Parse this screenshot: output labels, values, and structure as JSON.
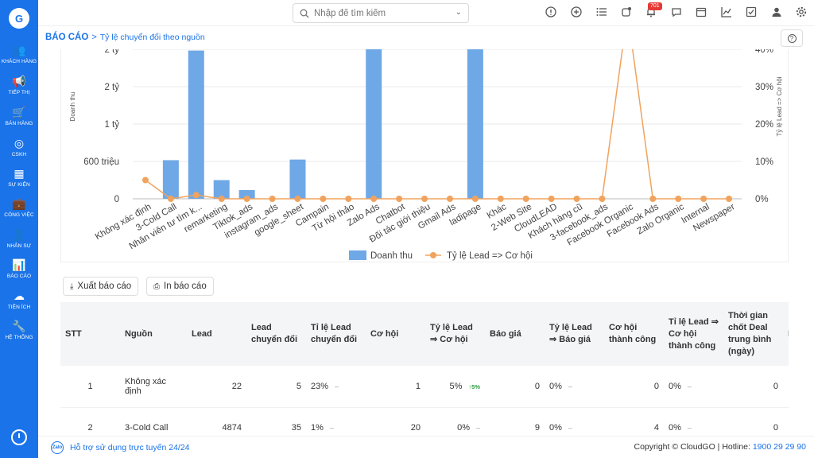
{
  "sidebar": {
    "logo": "G",
    "items": [
      {
        "label": "KHÁCH HÀNG",
        "icon": "users-icon",
        "glyph": "👥"
      },
      {
        "label": "TIẾP THỊ",
        "icon": "megaphone-icon",
        "glyph": "📢"
      },
      {
        "label": "BÁN HÀNG",
        "icon": "cart-icon",
        "glyph": "🛒"
      },
      {
        "label": "CSKH",
        "icon": "lifebuoy-icon",
        "glyph": "◎"
      },
      {
        "label": "SỰ KIỆN",
        "icon": "calendar-icon",
        "glyph": "▦"
      },
      {
        "label": "CÔNG VIỆC",
        "icon": "briefcase-icon",
        "glyph": "💼"
      },
      {
        "label": "NHÂN SỰ",
        "icon": "person-icon",
        "glyph": "👤"
      },
      {
        "label": "BÁO CÁO",
        "icon": "report-icon",
        "glyph": "📊"
      },
      {
        "label": "TIỆN ÍCH",
        "icon": "utilities-icon",
        "glyph": "☁"
      },
      {
        "label": "HỆ THỐNG",
        "icon": "wrench-icon",
        "glyph": "🔧"
      }
    ]
  },
  "topbar": {
    "search_placeholder": "Nhập để tìm kiếm",
    "notification_count": "701"
  },
  "breadcrumb": {
    "root": "BÁO CÁO",
    "separator": ">",
    "current": "Tỷ lệ chuyển đổi theo nguồn"
  },
  "chart_data": {
    "type": "bar",
    "categories": [
      "Không xác định",
      "3-Cold Call",
      "Nhân viên tư tìm k...",
      "remarketing",
      "Tiktok_ads",
      "instagram_ads",
      "google_sheet",
      "Campain",
      "Từ hội thảo",
      "Zalo Ads",
      "Chatbot",
      "Đối tác giới thiệu",
      "Gmail Ads",
      "ladipage",
      "Khác",
      "2-Web Site",
      "CloudLEAD",
      "Khách hàng cũ",
      "3-facebook_ads",
      "Facebook Organic",
      "Facebook Ads",
      "Zalo Organic",
      "Internal",
      "Newspaper"
    ],
    "series": [
      {
        "name": "Doanh thu",
        "type": "bar",
        "axis": "left",
        "color": "#6fa8e6",
        "values": [
          0,
          0.62,
          2.38,
          0.3,
          0.14,
          0,
          0.63,
          0,
          0,
          2.7,
          0,
          0,
          0,
          2.62,
          0,
          0,
          0,
          0,
          0,
          0,
          0,
          0,
          0,
          0
        ]
      },
      {
        "name": "Tỷ lệ Lead => Cơ hội",
        "type": "line",
        "axis": "right",
        "color": "#f0a35e",
        "values": [
          5,
          0,
          1,
          0,
          0,
          0,
          0,
          0,
          0,
          0,
          0,
          0,
          0,
          0,
          0,
          0,
          0,
          0,
          0,
          50,
          0,
          0,
          0,
          0
        ]
      }
    ],
    "left_axis": {
      "label": "Doanh thu",
      "ticks": [
        "0",
        "600 triệu",
        "1 tỷ",
        "2 tỷ",
        "2 tỷ"
      ],
      "tick_values": [
        0,
        0.6,
        1.2,
        1.8,
        2.4
      ],
      "ylim": [
        0,
        2.4
      ]
    },
    "right_axis": {
      "label": "Tỷ lệ Lead => Cơ hội",
      "ticks": [
        "0%",
        "10%",
        "20%",
        "30%",
        "40%"
      ],
      "tick_values": [
        0,
        10,
        20,
        30,
        40
      ],
      "ylim": [
        0,
        40
      ]
    },
    "legend_position": "bottom",
    "grid": true
  },
  "actions": {
    "export_label": "Xuất báo cáo",
    "print_label": "In báo cáo"
  },
  "table": {
    "headers": [
      "STT",
      "Nguồn",
      "Lead",
      "Lead chuyển đổi",
      "Tỉ lệ Lead chuyển đổi",
      "Cơ hội",
      "Tỷ lệ Lead ⇒ Cơ hội",
      "Báo giá",
      "Tỷ lệ Lead ⇒ Báo giá",
      "Cơ hội thành công",
      "Tỉ lệ Lead ⇒ Cơ hội thành công",
      "Thời gian chốt Deal trung bình (ngày)",
      "I"
    ],
    "rows": [
      {
        "stt": "1",
        "source": "Không xác định",
        "lead": "22",
        "converted": "5",
        "conv_rate": "23%",
        "conv_trend": "–",
        "opp": "1",
        "opp_rate": "5%",
        "opp_trend": "↑5%",
        "quote": "0",
        "quote_rate": "0%",
        "quote_trend": "–",
        "won": "0",
        "won_rate": "0%",
        "won_trend": "–",
        "days": "0"
      },
      {
        "stt": "2",
        "source": "3-Cold Call",
        "lead": "4874",
        "converted": "35",
        "conv_rate": "1%",
        "conv_trend": "–",
        "opp": "20",
        "opp_rate": "0%",
        "opp_trend": "–",
        "quote": "9",
        "quote_rate": "0%",
        "quote_trend": "–",
        "won": "4",
        "won_rate": "0%",
        "won_trend": "–",
        "days": "0"
      }
    ]
  },
  "footer": {
    "zalo": "Zalo",
    "support": "Hỗ trợ sử dụng trực tuyến 24/24",
    "copyright": "Copyright © CloudGO | Hotline: ",
    "hotline": "1900 29 29 90"
  }
}
